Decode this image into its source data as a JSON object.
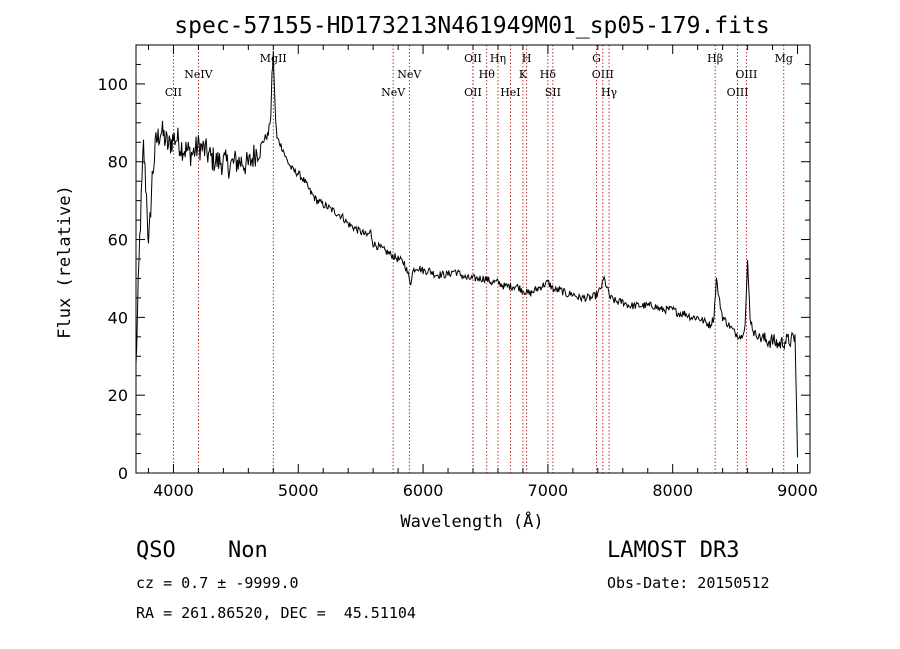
{
  "chart_data": {
    "type": "line",
    "title": "spec-57155-HD173213N461949M01_sp05-179.fits",
    "xlabel": "Wavelength (Å)",
    "ylabel": "Flux (relative)",
    "xlim": [
      3700,
      9100
    ],
    "ylim": [
      0,
      110
    ],
    "xticks": [
      4000,
      5000,
      6000,
      7000,
      8000,
      9000
    ],
    "yticks": [
      0,
      20,
      40,
      60,
      80,
      100
    ],
    "grid": false,
    "series": [
      {
        "x": [
          3700,
          3730,
          3760,
          3790,
          3800,
          3830,
          3860,
          3900,
          3930,
          3960,
          4000,
          4030,
          4060,
          4100,
          4150,
          4200,
          4250,
          4300,
          4350,
          4400,
          4450,
          4500,
          4550,
          4600,
          4650,
          4700,
          4730,
          4760,
          4780,
          4790,
          4800,
          4810,
          4820,
          4830,
          4850,
          4880,
          4900,
          4950,
          5000,
          5050,
          5100,
          5150,
          5200,
          5250,
          5300,
          5350,
          5400,
          5450,
          5500,
          5550,
          5580,
          5600,
          5650,
          5700,
          5750,
          5800,
          5850,
          5880,
          5900,
          5920,
          5950,
          6000,
          6050,
          6100,
          6150,
          6200,
          6250,
          6300,
          6350,
          6400,
          6450,
          6500,
          6550,
          6600,
          6650,
          6700,
          6750,
          6800,
          6850,
          6900,
          6950,
          7000,
          7050,
          7100,
          7150,
          7200,
          7250,
          7300,
          7350,
          7400,
          7430,
          7450,
          7470,
          7500,
          7550,
          7600,
          7650,
          7700,
          7750,
          7800,
          7850,
          7900,
          7950,
          8000,
          8050,
          8100,
          8150,
          8200,
          8250,
          8300,
          8330,
          8350,
          8370,
          8400,
          8450,
          8500,
          8550,
          8580,
          8600,
          8620,
          8650,
          8700,
          8750,
          8800,
          8850,
          8900,
          8950,
          8980,
          9000
        ],
        "y": [
          27,
          60,
          84,
          68,
          57,
          76,
          85,
          88,
          86,
          84,
          86,
          86,
          84,
          83,
          82,
          84,
          83,
          81,
          80,
          80,
          79,
          80,
          80,
          79,
          82,
          84,
          86,
          87,
          92,
          102,
          108,
          98,
          90,
          86,
          85,
          83,
          81,
          78,
          77,
          75,
          72,
          70,
          69,
          68,
          67,
          66,
          64,
          63,
          62,
          61,
          62,
          59,
          58,
          57,
          56,
          55,
          54,
          51,
          49,
          52,
          53,
          52,
          52,
          51,
          51,
          51,
          52,
          51,
          50,
          50,
          50,
          50,
          49,
          49,
          48,
          48,
          48,
          47,
          46,
          47,
          48,
          49,
          47,
          47,
          46,
          46,
          45,
          45,
          45,
          46,
          48,
          50,
          48,
          45,
          44,
          44,
          43,
          43,
          43,
          43,
          43,
          42,
          42,
          42,
          41,
          41,
          40,
          40,
          39,
          38,
          40,
          50,
          45,
          40,
          38,
          36,
          35,
          38,
          54,
          40,
          36,
          35,
          34,
          34,
          33,
          34,
          34,
          35,
          4
        ]
      }
    ],
    "annotations": [
      {
        "label": "CII",
        "x": 4000,
        "row": 2
      },
      {
        "label": "NeIV",
        "x": 4200,
        "row": 1
      },
      {
        "label": "MgII",
        "x": 4800,
        "row": 0
      },
      {
        "label": "NeV",
        "x": 5760,
        "row": 2
      },
      {
        "label": "NeV",
        "x": 5890,
        "row": 1
      },
      {
        "label": "OII",
        "x": 6400,
        "row": 0
      },
      {
        "label": "OII",
        "x": 6400,
        "row": 2
      },
      {
        "label": "Hθ",
        "x": 6510,
        "row": 1
      },
      {
        "label": "Hη",
        "x": 6600,
        "row": 0
      },
      {
        "label": "HeI",
        "x": 6700,
        "row": 2
      },
      {
        "label": "K",
        "x": 6800,
        "row": 1
      },
      {
        "label": "H",
        "x": 6830,
        "row": 0
      },
      {
        "label": "Hδ",
        "x": 7000,
        "row": 1
      },
      {
        "label": "SII",
        "x": 7040,
        "row": 2
      },
      {
        "label": "G",
        "x": 7390,
        "row": 0
      },
      {
        "label": "OIII",
        "x": 7440,
        "row": 1
      },
      {
        "label": "Hγ",
        "x": 7490,
        "row": 2
      },
      {
        "label": "Hβ",
        "x": 8340,
        "row": 0
      },
      {
        "label": "OIII",
        "x": 8520,
        "row": 2
      },
      {
        "label": "OIII",
        "x": 8590,
        "row": 1
      },
      {
        "label": "Mg",
        "x": 8890,
        "row": 0
      }
    ]
  },
  "info": {
    "class": "QSO",
    "subclass": "Non",
    "survey": "LAMOST DR3",
    "cz": "cz = 0.7 ± -9999.0",
    "obs_date": "Obs-Date: 20150512",
    "coords": "RA = 261.86520, DEC =  45.51104"
  },
  "colors": {
    "line": "#000000",
    "marker": "#aa0000"
  }
}
